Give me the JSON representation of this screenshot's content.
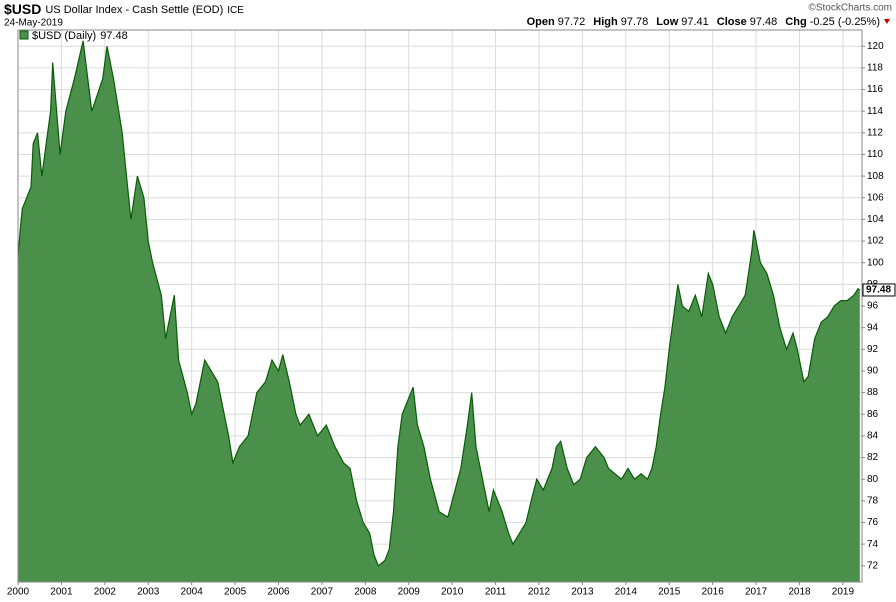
{
  "chart_data": {
    "type": "area",
    "title": "$USD",
    "subtitle": "US Dollar Index - Cash Settle (EOD)",
    "exchange": "ICE",
    "date": "24-May-2019",
    "source": "©StockCharts.com",
    "quote": [
      {
        "label": "Open",
        "value": 97.72
      },
      {
        "label": "High",
        "value": 97.78
      },
      {
        "label": "Low",
        "value": 97.41
      },
      {
        "label": "Close",
        "value": 97.48
      },
      {
        "label": "Chg",
        "value": "-0.25 (-0.25%)"
      }
    ],
    "x": [
      2000.0,
      2000.05,
      2000.1,
      2000.2,
      2000.3,
      2000.35,
      2000.45,
      2000.55,
      2000.65,
      2000.75,
      2000.8,
      2000.97,
      2001.1,
      2001.3,
      2001.5,
      2001.7,
      2001.95,
      2002.05,
      2002.2,
      2002.4,
      2002.5,
      2002.6,
      2002.75,
      2002.9,
      2003.0,
      2003.1,
      2003.3,
      2003.4,
      2003.6,
      2003.7,
      2003.9,
      2004.0,
      2004.1,
      2004.3,
      2004.45,
      2004.6,
      2004.75,
      2004.85,
      2004.95,
      2005.1,
      2005.3,
      2005.5,
      2005.7,
      2005.85,
      2006.0,
      2006.1,
      2006.25,
      2006.4,
      2006.5,
      2006.7,
      2006.9,
      2007.1,
      2007.3,
      2007.5,
      2007.65,
      2007.8,
      2007.95,
      2008.1,
      2008.2,
      2008.3,
      2008.45,
      2008.55,
      2008.65,
      2008.75,
      2008.85,
      2008.95,
      2009.1,
      2009.2,
      2009.35,
      2009.5,
      2009.7,
      2009.9,
      2010.0,
      2010.2,
      2010.35,
      2010.45,
      2010.55,
      2010.7,
      2010.85,
      2010.95,
      2011.15,
      2011.3,
      2011.4,
      2011.55,
      2011.7,
      2011.85,
      2011.95,
      2012.1,
      2012.3,
      2012.4,
      2012.5,
      2012.65,
      2012.8,
      2012.95,
      2013.1,
      2013.3,
      2013.5,
      2013.6,
      2013.75,
      2013.9,
      2014.05,
      2014.2,
      2014.35,
      2014.5,
      2014.6,
      2014.7,
      2014.8,
      2014.9,
      2015.0,
      2015.2,
      2015.3,
      2015.45,
      2015.6,
      2015.75,
      2015.9,
      2016.0,
      2016.15,
      2016.3,
      2016.45,
      2016.6,
      2016.75,
      2016.9,
      2016.95,
      2017.1,
      2017.25,
      2017.4,
      2017.55,
      2017.7,
      2017.85,
      2017.95,
      2018.1,
      2018.2,
      2018.35,
      2018.5,
      2018.65,
      2018.8,
      2018.95,
      2019.1,
      2019.25,
      2019.35,
      2019.39
    ],
    "series": [
      {
        "name": "$USD (Daily)",
        "color": "#0a5c0a",
        "fill": "#4a8f4a",
        "values": [
          100.5,
          103,
          105,
          106,
          107,
          111,
          112,
          108,
          111,
          114,
          118.5,
          110,
          114,
          117,
          120.5,
          114,
          117,
          120,
          117,
          112,
          108,
          104,
          108,
          106,
          102,
          100,
          97,
          93,
          97,
          91,
          88,
          86,
          87,
          91,
          90,
          89,
          86,
          84,
          81.5,
          83,
          84,
          88,
          89,
          91,
          90,
          91.5,
          89,
          86,
          85,
          86,
          84,
          85,
          83,
          81.5,
          81,
          78,
          76,
          75,
          73,
          72,
          72.5,
          73.5,
          77,
          83,
          86,
          87,
          88.5,
          85,
          83,
          80,
          77,
          76.5,
          78,
          81,
          85,
          88,
          83,
          80,
          77,
          79,
          77,
          75,
          74,
          75,
          76,
          78.5,
          80,
          79,
          81,
          83,
          83.5,
          81,
          79.5,
          80,
          82,
          83,
          82,
          81,
          80.5,
          80,
          81,
          80,
          80.5,
          80,
          81,
          83,
          86,
          88.5,
          92,
          98,
          96,
          95.5,
          97,
          95,
          99,
          98,
          95,
          93.5,
          95,
          96,
          97,
          101,
          103,
          100,
          99,
          97,
          94,
          92,
          93.5,
          92,
          89,
          89.5,
          93,
          94.5,
          95,
          96,
          96.5,
          96.5,
          97,
          97.6,
          97.48
        ]
      }
    ],
    "xlim": [
      2000,
      2019.44
    ],
    "xticks": [
      2000,
      2001,
      2002,
      2003,
      2004,
      2005,
      2006,
      2007,
      2008,
      2009,
      2010,
      2011,
      2012,
      2013,
      2014,
      2015,
      2016,
      2017,
      2018,
      2019
    ],
    "ylim": [
      70.5,
      121.5
    ],
    "yticks": [
      72,
      74,
      76,
      78,
      80,
      82,
      84,
      86,
      88,
      90,
      92,
      94,
      96,
      98,
      100,
      102,
      104,
      106,
      108,
      110,
      112,
      114,
      116,
      118,
      120
    ],
    "grid": true
  }
}
